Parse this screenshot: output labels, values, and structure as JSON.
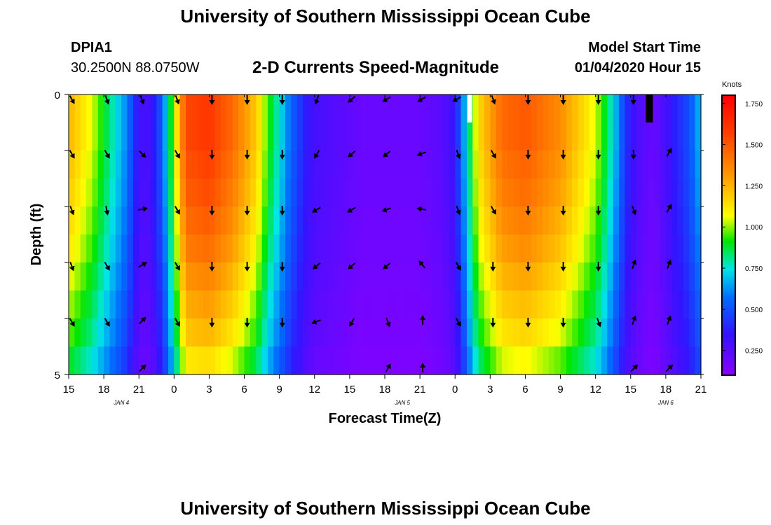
{
  "header": {
    "title": "University of Southern Mississippi Ocean Cube",
    "station_id": "DPIA1",
    "coordinates": "30.2500N 88.0750W",
    "chart_title": "2-D Currents Speed-Magnitude",
    "model_label": "Model Start Time",
    "model_time": "01/04/2020 Hour 15"
  },
  "footer": {
    "title": "University of Southern Mississippi Ocean Cube"
  },
  "chart_data": {
    "type": "heatmap",
    "title": "2-D Currents Speed-Magnitude",
    "xlabel": "Forecast Time(Z)",
    "ylabel": "Depth (ft)",
    "x_ticks": [
      "15",
      "18",
      "21",
      "0",
      "3",
      "6",
      "9",
      "12",
      "15",
      "18",
      "21",
      "0",
      "3",
      "6",
      "9",
      "12",
      "15",
      "18",
      "21"
    ],
    "x_start_hour": 15,
    "x_end_hour": 69,
    "y_ticks": [
      "0",
      "5"
    ],
    "ylim": [
      0,
      5
    ],
    "date_labels": [
      {
        "text": "JAN 4",
        "hour": 19.5
      },
      {
        "text": "JAN 5",
        "hour": 43.5
      },
      {
        "text": "JAN 6",
        "hour": 66
      }
    ],
    "colorbar": {
      "label": "Knots",
      "range": [
        0.1,
        1.8
      ],
      "ticks": [
        "0.250",
        "0.500",
        "0.750",
        "1.000",
        "1.250",
        "1.500",
        "1.750"
      ],
      "tick_values": [
        0.25,
        0.5,
        0.75,
        1.0,
        1.25,
        1.5,
        1.75
      ]
    },
    "depth_layers": [
      0.25,
      0.75,
      1.25,
      1.75,
      2.25,
      2.75,
      3.25,
      3.75,
      4.25,
      4.75
    ],
    "speed_profile": {
      "hours": [
        15,
        16,
        17,
        18,
        19,
        20,
        20.7,
        21,
        22,
        23,
        24,
        25,
        27,
        29,
        31,
        32,
        33,
        34,
        35,
        36,
        40,
        45,
        47,
        48,
        49,
        50,
        52,
        54,
        57,
        60,
        61,
        62,
        62.5,
        63,
        64,
        65,
        66,
        68,
        69
      ],
      "values": [
        1.25,
        1.15,
        1.05,
        0.9,
        0.75,
        0.6,
        0.4,
        0.3,
        0.3,
        0.55,
        1.0,
        1.55,
        1.6,
        1.45,
        1.2,
        0.95,
        0.75,
        0.55,
        0.4,
        0.3,
        0.2,
        0.2,
        0.25,
        0.35,
        0.75,
        1.15,
        1.45,
        1.5,
        1.35,
        1.05,
        0.85,
        0.6,
        0.45,
        0.35,
        0.25,
        0.2,
        0.3,
        0.5,
        0.7
      ]
    },
    "speed_depth_factor": [
      1.0,
      1.0,
      0.98,
      0.96,
      0.93,
      0.9,
      0.86,
      0.82,
      0.78,
      0.72
    ],
    "missing_cells": [
      {
        "hour": 49.25,
        "width_hours": 0.4,
        "depth_top": 0,
        "depth_bottom": 0.5,
        "color": "#ffffff"
      },
      {
        "hour": 64.6,
        "width_hours": 0.6,
        "depth_top": 0,
        "depth_bottom": 0.5,
        "color": "#000000"
      }
    ],
    "vector_hours": [
      15,
      18,
      21,
      24,
      27,
      30,
      33,
      36,
      39,
      42,
      45,
      48,
      51,
      54,
      57,
      60,
      63,
      66
    ],
    "vector_depths": [
      0,
      1,
      2,
      3,
      4,
      5
    ],
    "vector_directions_deg": [
      [
        150,
        160,
        160,
        160,
        180,
        180,
        180,
        200,
        230,
        240,
        240,
        240,
        160,
        180,
        180,
        180,
        180,
        null
      ],
      [
        150,
        150,
        135,
        150,
        180,
        180,
        180,
        210,
        230,
        230,
        250,
        160,
        150,
        180,
        180,
        180,
        180,
        30
      ],
      [
        160,
        170,
        80,
        150,
        180,
        180,
        180,
        240,
        240,
        250,
        280,
        160,
        150,
        180,
        180,
        180,
        160,
        30
      ],
      [
        160,
        150,
        60,
        150,
        180,
        180,
        180,
        230,
        230,
        230,
        320,
        150,
        180,
        180,
        180,
        180,
        20,
        20
      ],
      [
        150,
        150,
        45,
        150,
        180,
        180,
        180,
        250,
        210,
        160,
        0,
        150,
        180,
        180,
        180,
        160,
        20,
        20
      ],
      [
        null,
        null,
        45,
        null,
        null,
        null,
        null,
        null,
        null,
        30,
        0,
        null,
        null,
        null,
        null,
        null,
        45,
        45
      ]
    ]
  }
}
